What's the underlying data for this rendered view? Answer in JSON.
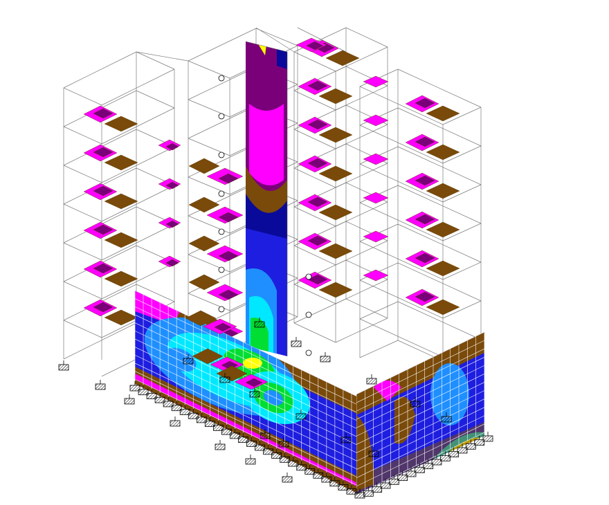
{
  "palette": {
    "background": "#ffffff",
    "frame_line": "#7a7a7a",
    "support_fill": "#ffffff",
    "support_stroke": "#000000",
    "mesh_line": "#ffffff",
    "contour_dark_purple": "#7a007a",
    "contour_magenta": "#ff00ff",
    "contour_brown": "#7a4a0a",
    "contour_navy": "#0a0a9a",
    "contour_blue": "#1e1ee0",
    "contour_sky": "#1f8fff",
    "contour_cyan": "#00e8ff",
    "contour_green": "#00dd33",
    "contour_yellow": "#ffff00",
    "contour_orange": "#ff8800",
    "contour_red": "#ff0000"
  },
  "model": {
    "stories": 7,
    "icons": [
      "support-icon",
      "node-marker-icon"
    ]
  }
}
